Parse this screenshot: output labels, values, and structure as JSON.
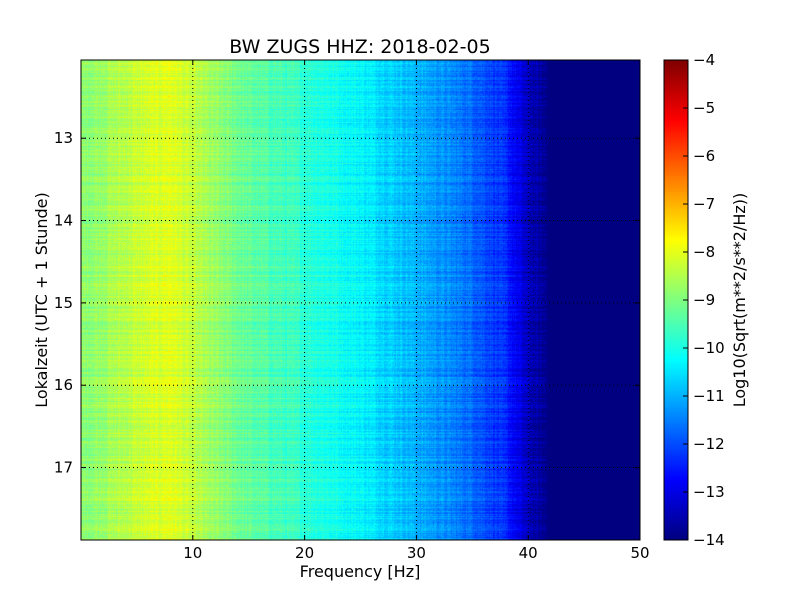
{
  "chart_data": {
    "type": "heatmap",
    "title": "BW ZUGS HHZ: 2018-02-05",
    "xlabel": "Frequency [Hz]",
    "ylabel": "Lokalzeit (UTC + 1 Stunde)",
    "colorbar_label": "Log10(Sqrt(m**2/s**2/Hz))",
    "colormap": "jet",
    "x_range": [
      0,
      50
    ],
    "y_range": [
      12.05,
      17.88
    ],
    "y_inverted": true,
    "color_range": [
      -14,
      -4
    ],
    "x_ticks": [
      10,
      20,
      30,
      40,
      50
    ],
    "x_tick_labels": [
      "10",
      "20",
      "30",
      "40",
      "50"
    ],
    "y_ticks": [
      13,
      14,
      15,
      16,
      17
    ],
    "y_tick_labels": [
      "13",
      "14",
      "15",
      "16",
      "17"
    ],
    "colorbar_ticks": [
      -4,
      -5,
      -6,
      -7,
      -8,
      -9,
      -10,
      -11,
      -12,
      -13,
      -14
    ],
    "colorbar_tick_labels": [
      "−4",
      "−5",
      "−6",
      "−7",
      "−8",
      "−9",
      "−10",
      "−11",
      "−12",
      "−13",
      "−14"
    ],
    "grid": true,
    "approx_profile_log10": {
      "frequency_hz": [
        0,
        2,
        5,
        8,
        10,
        12,
        15,
        20,
        25,
        30,
        35,
        38,
        40,
        42,
        45,
        50
      ],
      "value": [
        -8.9,
        -8.7,
        -8.3,
        -8.0,
        -8.4,
        -8.8,
        -9.3,
        -9.8,
        -10.3,
        -11.0,
        -11.7,
        -12.4,
        -13.4,
        -14.0,
        -14.0,
        -14.0
      ]
    }
  }
}
